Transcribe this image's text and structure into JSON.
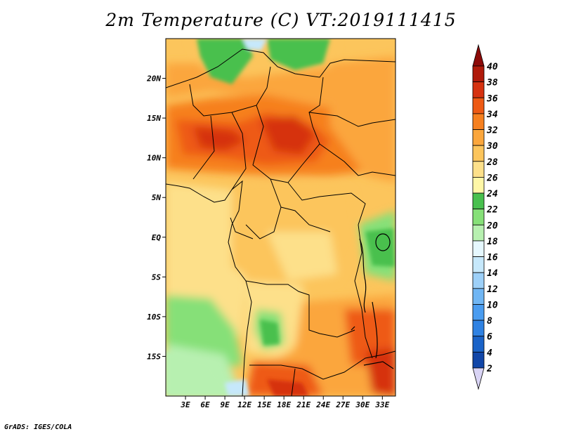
{
  "title": "2m Temperature (C) VT:2019111415",
  "footer": "GrADS: IGES/COLA",
  "map": {
    "lon_range": [
      0,
      35
    ],
    "lat_range": [
      -20,
      25
    ],
    "lat_ticks": [
      "20N",
      "15N",
      "10N",
      "5N",
      "EQ",
      "5S",
      "10S",
      "15S"
    ],
    "lon_ticks": [
      "3E",
      "6E",
      "9E",
      "12E",
      "15E",
      "18E",
      "21E",
      "24E",
      "27E",
      "30E",
      "33E"
    ]
  },
  "colorbar": {
    "levels": [
      "2",
      "4",
      "6",
      "8",
      "10",
      "12",
      "14",
      "16",
      "18",
      "20",
      "22",
      "24",
      "26",
      "28",
      "30",
      "32",
      "34",
      "36",
      "38",
      "40"
    ],
    "colors": [
      "#0b1f7a",
      "#1146a8",
      "#1a63c8",
      "#2f82e3",
      "#4a9cf0",
      "#70b6f4",
      "#9dd0f8",
      "#c6e8fb",
      "#e6f8ff",
      "#b7f0b0",
      "#86e078",
      "#48c04e",
      "#fff7a6",
      "#fde08a",
      "#fcc55c",
      "#fba63c",
      "#f6801f",
      "#ee5a14",
      "#d63210",
      "#b01a0a",
      "#8c0a08"
    ],
    "under_color": "#d9d4f5"
  }
}
